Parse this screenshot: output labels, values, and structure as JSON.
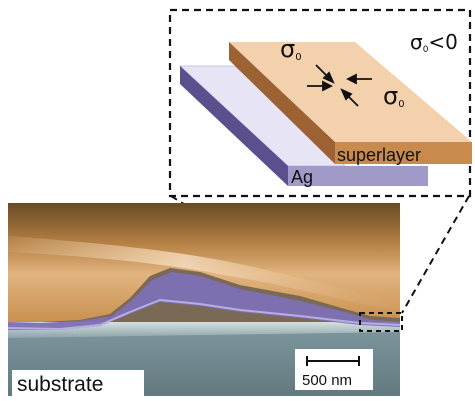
{
  "figure": {
    "inset": {
      "sigma_top": "σ",
      "sigma_top_sub": "0",
      "sigma_right": "σ",
      "sigma_right_sub": "0",
      "condition_sigma": "σ",
      "condition_sub": "0",
      "condition_rel": "<0",
      "superlayer_label": "superlayer",
      "ag_label": "Ag"
    },
    "micrograph": {
      "substrate_label": "substrate",
      "scalebar_label": "500 nm"
    },
    "colors": {
      "superlayer_top": "#f4d1ad",
      "superlayer_side": "#b8773c",
      "ag_top": "#e7e4f5",
      "ag_side": "#5c4f8e",
      "ag_edge": "#9c95c8",
      "substrate": "#6e8790"
    }
  }
}
